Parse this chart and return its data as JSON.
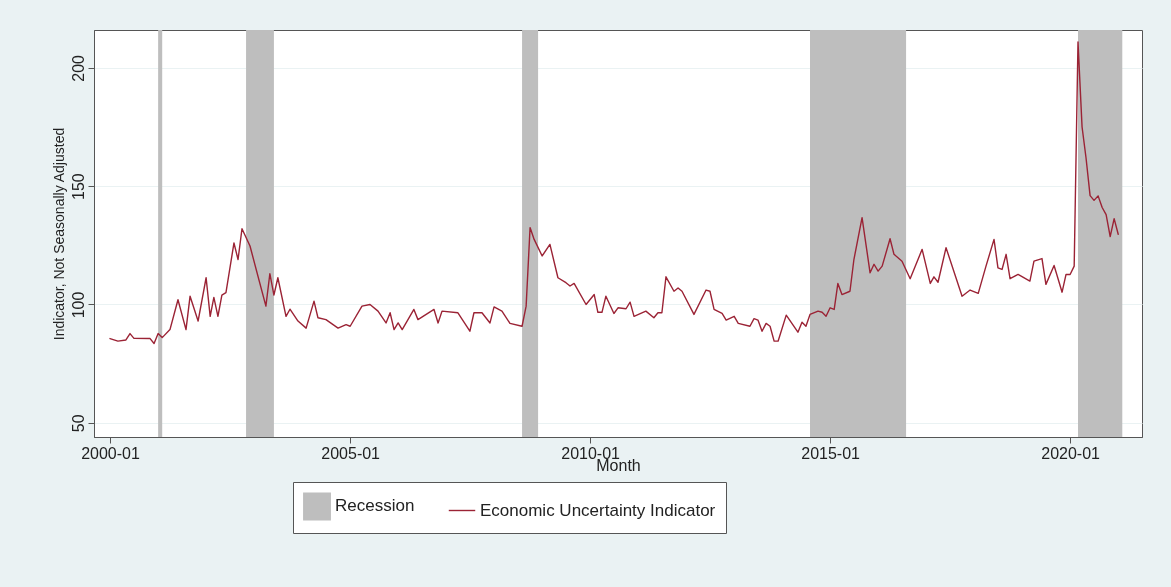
{
  "chart_data": {
    "type": "line",
    "xlabel": "Month",
    "ylabel": "Indicator, Not Seasonally Adjusted",
    "xlim": [
      "1999-09",
      "2021-07"
    ],
    "xticks": [
      "2000-01",
      "2005-01",
      "2010-01",
      "2015-01",
      "2020-01"
    ],
    "ylim": [
      44,
      216
    ],
    "yticks": [
      50,
      100,
      150,
      200
    ],
    "grid": "y",
    "legend": "bottom",
    "line_style": "solid",
    "bands": [
      {
        "axis": "x",
        "from": "2001-01",
        "to": "2001-02",
        "label": "Recession",
        "color": "#bebebe"
      },
      {
        "axis": "x",
        "from": "2002-11",
        "to": "2003-06",
        "color": "#bebebe"
      },
      {
        "axis": "x",
        "from": "2008-08",
        "to": "2008-12",
        "color": "#bebebe"
      },
      {
        "axis": "x",
        "from": "2014-08",
        "to": "2016-08",
        "color": "#bebebe"
      },
      {
        "axis": "x",
        "from": "2020-03",
        "to": "2021-02",
        "color": "#bebebe"
      }
    ],
    "series": [
      {
        "name": "Economic Uncertainty Indicator",
        "color": "#9b2335",
        "x": [
          "2000-01",
          "2000-03",
          "2000-05",
          "2000-06",
          "2000-07",
          "2000-11",
          "2000-12",
          "2001-01",
          "2001-02",
          "2001-04",
          "2001-06",
          "2001-08",
          "2001-09",
          "2001-11",
          "2002-01",
          "2002-02",
          "2002-03",
          "2002-04",
          "2002-05",
          "2002-06",
          "2002-08",
          "2002-09",
          "2002-10",
          "2002-12",
          "2003-04",
          "2003-05",
          "2003-06",
          "2003-07",
          "2003-09",
          "2003-10",
          "2003-12",
          "2004-02",
          "2004-04",
          "2004-05",
          "2004-07",
          "2004-10",
          "2004-12",
          "2005-01",
          "2005-04",
          "2005-06",
          "2005-08",
          "2005-10",
          "2005-11",
          "2005-12",
          "2006-01",
          "2006-02",
          "2006-05",
          "2006-06",
          "2006-10",
          "2006-11",
          "2006-12",
          "2007-04",
          "2007-07",
          "2007-08",
          "2007-10",
          "2007-12",
          "2008-01",
          "2008-03",
          "2008-05",
          "2008-08",
          "2008-09",
          "2008-10",
          "2008-11",
          "2009-01",
          "2009-03",
          "2009-05",
          "2009-07",
          "2009-08",
          "2009-09",
          "2009-12",
          "2010-02",
          "2010-03",
          "2010-04",
          "2010-05",
          "2010-07",
          "2010-08",
          "2010-10",
          "2010-11",
          "2010-12",
          "2011-03",
          "2011-05",
          "2011-06",
          "2011-07",
          "2011-08",
          "2011-10",
          "2011-11",
          "2011-12",
          "2012-03",
          "2012-06",
          "2012-07",
          "2012-08",
          "2012-10",
          "2012-11",
          "2013-01",
          "2013-02",
          "2013-05",
          "2013-06",
          "2013-07",
          "2013-08",
          "2013-09",
          "2013-10",
          "2013-11",
          "2013-12",
          "2014-02",
          "2014-05",
          "2014-06",
          "2014-07",
          "2014-08",
          "2014-10",
          "2014-11",
          "2014-12",
          "2015-01",
          "2015-02",
          "2015-03",
          "2015-04",
          "2015-06",
          "2015-07",
          "2015-09",
          "2015-11",
          "2015-12",
          "2016-01",
          "2016-02",
          "2016-04",
          "2016-05",
          "2016-07",
          "2016-09",
          "2016-12",
          "2017-02",
          "2017-03",
          "2017-04",
          "2017-06",
          "2017-10",
          "2017-12",
          "2018-02",
          "2018-04",
          "2018-06",
          "2018-07",
          "2018-08",
          "2018-09",
          "2018-10",
          "2018-12",
          "2019-03",
          "2019-04",
          "2019-06",
          "2019-07",
          "2019-09",
          "2019-11",
          "2019-12",
          "2020-01",
          "2020-02",
          "2020-03",
          "2020-04",
          "2020-05",
          "2020-06",
          "2020-07",
          "2020-08",
          "2020-09",
          "2020-10",
          "2020-11",
          "2020-12",
          "2021-01"
        ],
        "values": [
          85.6,
          84.5,
          85,
          87.7,
          85.7,
          85.6,
          83.5,
          87.7,
          86,
          89.4,
          102,
          89.4,
          103.5,
          93,
          111.3,
          95,
          103,
          95,
          104,
          105,
          126,
          119,
          132,
          124.7,
          99.3,
          113,
          104,
          111.3,
          95,
          98,
          93,
          90,
          101.4,
          94.4,
          93.6,
          90,
          91.5,
          90.8,
          99.3,
          100,
          97.2,
          92.2,
          96.5,
          89.4,
          92.2,
          89.4,
          97.9,
          93.6,
          97.9,
          92.2,
          97.2,
          96.5,
          88.7,
          96.5,
          96.5,
          92.2,
          99,
          97.2,
          92,
          90.8,
          99.3,
          132.5,
          127.5,
          120.5,
          125.4,
          111.3,
          109.2,
          107.8,
          108.9,
          100,
          104.2,
          96.7,
          96.7,
          103.5,
          96.2,
          98.6,
          98.2,
          101,
          95,
          97.2,
          94.4,
          96.5,
          96.5,
          111.7,
          105.6,
          107,
          105.6,
          95.8,
          106.1,
          105.6,
          97.9,
          96.2,
          93.4,
          95,
          92,
          90.8,
          94,
          93.4,
          88.7,
          92,
          90.8,
          84.5,
          84.5,
          95.5,
          88.3,
          92.5,
          90.8,
          95.8,
          97.2,
          96.7,
          95,
          98.6,
          97.9,
          108.9,
          104.2,
          105.6,
          119,
          136.7,
          113.4,
          117,
          114.1,
          116.2,
          127.8,
          121.2,
          118.3,
          110.9,
          123.3,
          108.9,
          111.7,
          109.4,
          124,
          103.5,
          106.1,
          104.7,
          116.2,
          127.5,
          115.5,
          114.8,
          121.2,
          110.9,
          112.7,
          109.9,
          118.3,
          119.4,
          108.5,
          116.5,
          105.2,
          112.7,
          112.7,
          116.2,
          211,
          175,
          162,
          146,
          144,
          145.9,
          141,
          138,
          128.7,
          136.3,
          129.7
        ]
      }
    ]
  }
}
